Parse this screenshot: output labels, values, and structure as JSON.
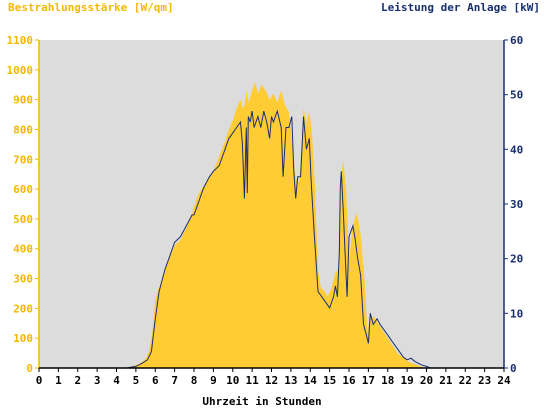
{
  "chart_data": {
    "type": "area",
    "left_title": "Bestrahlungsstärke [W/qm]",
    "right_title": "Leistung der Anlage [kW]",
    "xlabel": "Uhrzeit in Stunden",
    "x_ticks": [
      0,
      1,
      2,
      3,
      4,
      5,
      6,
      7,
      8,
      9,
      10,
      11,
      12,
      13,
      14,
      15,
      16,
      17,
      18,
      19,
      20,
      21,
      22,
      23,
      24
    ],
    "y_left_ticks": [
      0,
      100,
      200,
      300,
      400,
      500,
      600,
      700,
      800,
      900,
      1000,
      1100
    ],
    "y_right_ticks": [
      0,
      10,
      20,
      30,
      40,
      50,
      60
    ],
    "xlim": [
      0,
      24
    ],
    "ylim_left": [
      0,
      1100
    ],
    "ylim_right": [
      0,
      60
    ],
    "grid": false,
    "colors": {
      "plot_background": "#dcdcdc",
      "irradiance_fill": "#ffcc33",
      "power_line": "#1a2f6e",
      "left_axis_text": "#f5b800",
      "right_axis_text": "#1a2f6e",
      "axis_text": "#000000"
    },
    "series": [
      {
        "axis": "left",
        "style": "area",
        "x": [
          0,
          4.4,
          4.8,
          5.2,
          5.5,
          5.7,
          5.85,
          6.0,
          6.2,
          6.5,
          6.8,
          7.0,
          7.3,
          7.6,
          7.9,
          8.0,
          8.2,
          8.5,
          8.8,
          9.0,
          9.3,
          9.6,
          9.8,
          10.0,
          10.2,
          10.4,
          10.5,
          10.6,
          10.7,
          10.8,
          10.9,
          11.0,
          11.15,
          11.3,
          11.5,
          11.7,
          11.9,
          12.1,
          12.3,
          12.5,
          12.7,
          12.9,
          13.1,
          13.25,
          13.4,
          13.5,
          13.65,
          13.8,
          13.95,
          14.1,
          14.25,
          14.4,
          14.55,
          14.7,
          14.9,
          15.1,
          15.3,
          15.45,
          15.55,
          15.7,
          15.85,
          16.0,
          16.2,
          16.4,
          16.6,
          16.8,
          16.95,
          17.1,
          17.3,
          17.5,
          17.7,
          17.9,
          18.1,
          18.3,
          18.5,
          18.7,
          18.9,
          19.1,
          19.3,
          19.5,
          19.7,
          19.9,
          20.1,
          20.4,
          24
        ],
        "y": [
          0,
          0,
          5,
          15,
          30,
          60,
          120,
          230,
          270,
          330,
          380,
          410,
          430,
          470,
          520,
          540,
          580,
          610,
          640,
          660,
          710,
          760,
          800,
          830,
          870,
          900,
          870,
          880,
          930,
          890,
          910,
          930,
          960,
          920,
          950,
          930,
          900,
          920,
          890,
          930,
          880,
          860,
          720,
          640,
          620,
          680,
          870,
          820,
          860,
          780,
          600,
          330,
          270,
          260,
          240,
          270,
          320,
          330,
          590,
          700,
          600,
          360,
          480,
          520,
          450,
          300,
          120,
          170,
          170,
          150,
          130,
          110,
          90,
          70,
          50,
          40,
          30,
          20,
          15,
          10,
          5,
          2,
          0,
          0,
          0
        ]
      },
      {
        "axis": "right",
        "style": "line",
        "x": [
          0,
          4.5,
          5.0,
          5.3,
          5.6,
          5.8,
          6.0,
          6.2,
          6.5,
          6.8,
          7.0,
          7.3,
          7.6,
          7.9,
          8.0,
          8.2,
          8.5,
          8.8,
          9.0,
          9.3,
          9.6,
          9.8,
          10.0,
          10.2,
          10.4,
          10.5,
          10.6,
          10.7,
          10.75,
          10.8,
          10.9,
          11.0,
          11.1,
          11.2,
          11.3,
          11.45,
          11.6,
          11.75,
          11.9,
          12.0,
          12.1,
          12.3,
          12.5,
          12.6,
          12.75,
          12.9,
          13.05,
          13.15,
          13.25,
          13.35,
          13.5,
          13.65,
          13.8,
          13.95,
          14.05,
          14.2,
          14.4,
          14.6,
          14.8,
          15.0,
          15.2,
          15.3,
          15.4,
          15.5,
          15.55,
          15.6,
          15.7,
          15.8,
          15.9,
          16.0,
          16.1,
          16.2,
          16.3,
          16.45,
          16.6,
          16.75,
          16.9,
          17.0,
          17.1,
          17.25,
          17.45,
          17.6,
          17.8,
          18.0,
          18.2,
          18.4,
          18.6,
          18.8,
          19.0,
          19.2,
          19.4,
          19.6,
          19.8,
          20.0,
          20.2,
          20.5,
          24
        ],
        "y": [
          0,
          0,
          0.3,
          0.8,
          1.5,
          3,
          9,
          14,
          18,
          21,
          23,
          24,
          26,
          28,
          28,
          30,
          33,
          35,
          36,
          37,
          40,
          42,
          43,
          44,
          45,
          41,
          31,
          44,
          32,
          46,
          45,
          47,
          44,
          45,
          46,
          44,
          47,
          45,
          42,
          46,
          45,
          47,
          44,
          35,
          44,
          44,
          46,
          36,
          31,
          35,
          35,
          46,
          40,
          42,
          34,
          25,
          14,
          13,
          12,
          11,
          13,
          15,
          13,
          21,
          33,
          36,
          29,
          21,
          13,
          24,
          25,
          26,
          24,
          20,
          17,
          8,
          6,
          4.5,
          10,
          8,
          9,
          8,
          7,
          6,
          5,
          4,
          3,
          2,
          1.5,
          1.8,
          1.2,
          0.8,
          0.5,
          0.3,
          0,
          0,
          0
        ]
      }
    ]
  }
}
